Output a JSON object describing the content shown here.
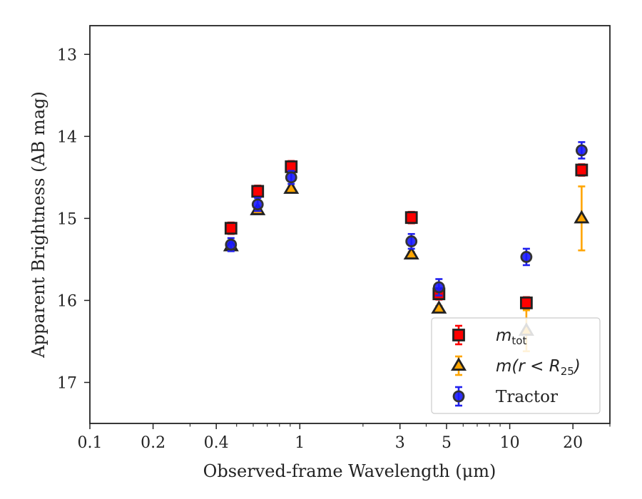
{
  "chart_data": {
    "type": "scatter",
    "xlabel": "Observed-frame Wavelength (μm)",
    "ylabel": "Apparent Brightness (AB mag)",
    "x_scale": "log",
    "xlim": [
      0.1,
      30
    ],
    "ylim": [
      17.5,
      12.65
    ],
    "y_inverted": true,
    "x_ticks": [
      {
        "value": 0.1,
        "label": "0.1"
      },
      {
        "value": 0.2,
        "label": "0.2"
      },
      {
        "value": 0.4,
        "label": "0.4"
      },
      {
        "value": 1,
        "label": "1"
      },
      {
        "value": 3,
        "label": "3"
      },
      {
        "value": 5,
        "label": "5"
      },
      {
        "value": 10,
        "label": "10"
      },
      {
        "value": 20,
        "label": "20"
      }
    ],
    "y_ticks": [
      {
        "value": 13,
        "label": "13"
      },
      {
        "value": 14,
        "label": "14"
      },
      {
        "value": 15,
        "label": "15"
      },
      {
        "value": 16,
        "label": "16"
      },
      {
        "value": 17,
        "label": "17"
      }
    ],
    "grid": false,
    "legend_position": "lower-right",
    "series": [
      {
        "name": "m_tot",
        "legend_math": "m",
        "legend_sub": "tot",
        "marker": "square",
        "color": "#ff0000",
        "edge_color": "#222222",
        "errorbar_color": "#ff0000",
        "points": [
          {
            "x": 0.47,
            "y": 15.12,
            "err": 0.07
          },
          {
            "x": 0.63,
            "y": 14.67,
            "err": 0.07
          },
          {
            "x": 0.91,
            "y": 14.37,
            "err": 0.07
          },
          {
            "x": 3.4,
            "y": 14.99,
            "err": 0.07
          },
          {
            "x": 4.6,
            "y": 15.92,
            "err": 0.07
          },
          {
            "x": 12.0,
            "y": 16.03,
            "err": 0.07
          },
          {
            "x": 22.0,
            "y": 14.41,
            "err": 0.07
          }
        ]
      },
      {
        "name": "m(r < R_25)",
        "legend_math": "m(r < R",
        "legend_sub": "25",
        "legend_tail": ")",
        "marker": "triangle",
        "color": "#ffa500",
        "edge_color": "#222222",
        "errorbar_color": "#ffa500",
        "points": [
          {
            "x": 0.47,
            "y": 15.34,
            "err": 0.03
          },
          {
            "x": 0.63,
            "y": 14.9,
            "err": 0.03
          },
          {
            "x": 0.91,
            "y": 14.64,
            "err": 0.03
          },
          {
            "x": 3.4,
            "y": 15.44,
            "err": 0.03
          },
          {
            "x": 4.6,
            "y": 16.1,
            "err": 0.03
          },
          {
            "x": 12.0,
            "y": 16.37,
            "err": 0.25
          },
          {
            "x": 22.0,
            "y": 15.0,
            "err": 0.39
          }
        ]
      },
      {
        "name": "Tractor",
        "marker": "circle",
        "color": "#1a1aff",
        "edge_color": "#333333",
        "errorbar_color": "#2020ee",
        "points": [
          {
            "x": 0.47,
            "y": 15.32,
            "err": 0.08
          },
          {
            "x": 0.63,
            "y": 14.83,
            "err": 0.08
          },
          {
            "x": 0.91,
            "y": 14.5,
            "err": 0.08
          },
          {
            "x": 3.4,
            "y": 15.28,
            "err": 0.09
          },
          {
            "x": 4.6,
            "y": 15.84,
            "err": 0.1
          },
          {
            "x": 12.0,
            "y": 15.47,
            "err": 0.1
          },
          {
            "x": 22.0,
            "y": 14.17,
            "err": 0.1
          }
        ]
      }
    ]
  }
}
